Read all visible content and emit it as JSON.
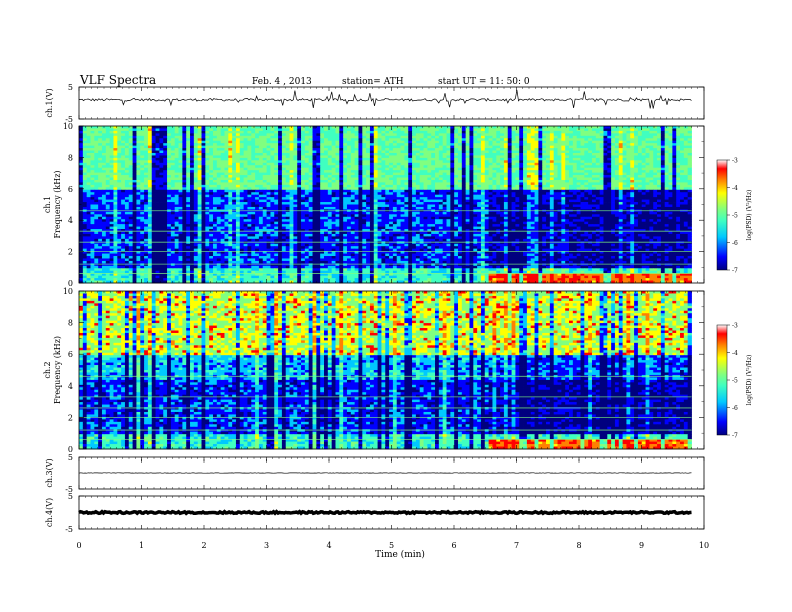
{
  "header": {
    "title": "VLF  Spectra",
    "date": "Feb. 4 , 2013",
    "station": "station= ATH",
    "start": "start  UT =   11: 50: 0"
  },
  "chart_data": {
    "type": "heatmap",
    "xlabel": "Time  (min)",
    "xlim": [
      0,
      10
    ],
    "xticks": [
      "0",
      "1",
      "2",
      "3",
      "4",
      "5",
      "6",
      "7",
      "8",
      "9",
      "10"
    ],
    "panels": [
      {
        "id": "ch1_wave",
        "ylabel": "ch.1(V)",
        "yticks": [
          "5",
          "-5"
        ],
        "ylim": [
          -5,
          5
        ],
        "trace": "noisy baseline with impulsive spikes",
        "baseline": 1
      },
      {
        "id": "ch1_spec",
        "ylabel": "ch.1\nFrequency  (kHz)",
        "yticks": [
          "0",
          "2",
          "4",
          "6",
          "8",
          "10"
        ],
        "ylim": [
          0,
          10
        ],
        "spectrogram": true,
        "data_end_min": 9.8
      },
      {
        "id": "ch2_spec",
        "ylabel": "ch.2\nFrequency  (kHz)",
        "yticks": [
          "0",
          "2",
          "4",
          "6",
          "8",
          "10"
        ],
        "ylim": [
          0,
          10
        ],
        "spectrogram": true,
        "data_end_min": 9.8
      },
      {
        "id": "ch3_wave",
        "ylabel": "ch.3(V)",
        "yticks": [
          "5",
          "-5"
        ],
        "ylim": [
          -5,
          5
        ],
        "trace": "flat near 0 V",
        "baseline": 0
      },
      {
        "id": "ch4_wave",
        "ylabel": "ch.4(V)",
        "yticks": [
          "5",
          "-5"
        ],
        "ylim": [
          -5,
          5
        ],
        "trace": "thick flat band",
        "baseline": 0
      }
    ],
    "colorbar": {
      "label": "log(PSD) (V²/Hz)",
      "ticks": [
        "-3",
        "-4",
        "-5",
        "-6",
        "-7"
      ],
      "range": [
        -7,
        -3
      ],
      "colormap": [
        "#00007f",
        "#0000ff",
        "#00c8ff",
        "#40ffc0",
        "#80ff80",
        "#ffff00",
        "#ff8000",
        "#ff0000",
        "#ffffff"
      ]
    }
  }
}
